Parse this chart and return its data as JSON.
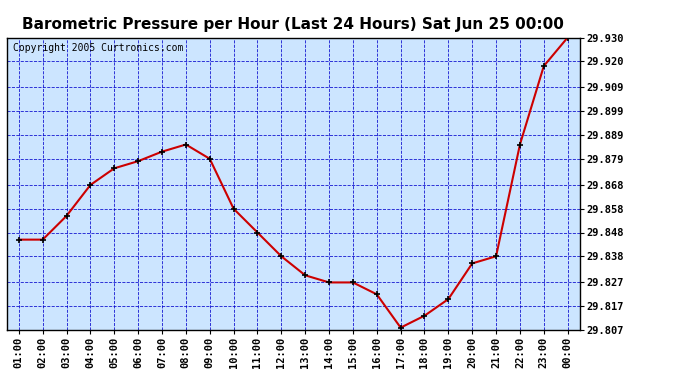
{
  "title": "Barometric Pressure per Hour (Last 24 Hours) Sat Jun 25 00:00",
  "copyright": "Copyright 2005 Curtronics.com",
  "x_labels": [
    "01:00",
    "02:00",
    "03:00",
    "04:00",
    "05:00",
    "06:00",
    "07:00",
    "08:00",
    "09:00",
    "10:00",
    "11:00",
    "12:00",
    "13:00",
    "14:00",
    "15:00",
    "16:00",
    "17:00",
    "18:00",
    "19:00",
    "20:00",
    "21:00",
    "22:00",
    "23:00",
    "00:00"
  ],
  "y_values": [
    29.845,
    29.845,
    29.855,
    29.868,
    29.875,
    29.878,
    29.882,
    29.885,
    29.879,
    29.858,
    29.848,
    29.838,
    29.83,
    29.827,
    29.827,
    29.822,
    29.808,
    29.813,
    29.82,
    29.835,
    29.838,
    29.885,
    29.918,
    29.93
  ],
  "ylim_min": 29.807,
  "ylim_max": 29.93,
  "y_ticks": [
    29.807,
    29.817,
    29.827,
    29.838,
    29.848,
    29.858,
    29.868,
    29.879,
    29.889,
    29.899,
    29.909,
    29.92,
    29.93
  ],
  "line_color": "#cc0000",
  "marker_color": "#000000",
  "bg_color": "#cce5ff",
  "grid_color": "#0000cc",
  "border_color": "#000000",
  "title_fontsize": 11,
  "tick_fontsize": 7.5,
  "copyright_fontsize": 7
}
